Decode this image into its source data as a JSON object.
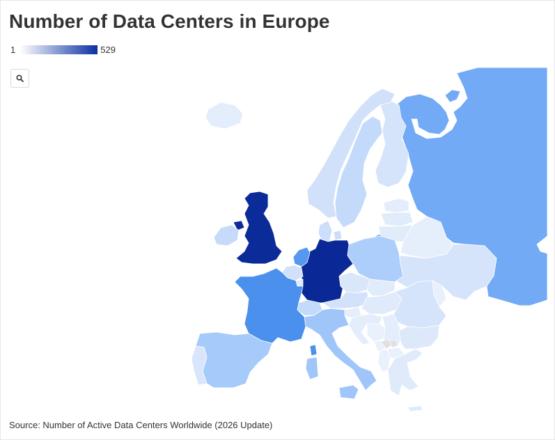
{
  "title": "Number of Data Centers in Europe",
  "legend": {
    "min": "1",
    "max": "529",
    "color_low": "#ffffff",
    "color_high": "#0a2fa3"
  },
  "controls": {
    "zoom_icon": "search-icon"
  },
  "source": "Source: Number of Active Data Centers Worldwide (2026 Update)",
  "map_data": {
    "metric": "Number of active data centers",
    "scale": {
      "min": 1,
      "max": 529
    },
    "countries": [
      {
        "name": "Russia",
        "value": 250
      },
      {
        "name": "United Kingdom",
        "value": 520
      },
      {
        "name": "Germany",
        "value": 529
      },
      {
        "name": "France",
        "value": 320
      },
      {
        "name": "Netherlands",
        "value": 300
      },
      {
        "name": "Italy",
        "value": 170
      },
      {
        "name": "Spain",
        "value": 160
      },
      {
        "name": "Poland",
        "value": 145
      },
      {
        "name": "Sweden",
        "value": 95
      },
      {
        "name": "Norway",
        "value": 65
      },
      {
        "name": "Finland",
        "value": 55
      },
      {
        "name": "Ireland",
        "value": 90
      },
      {
        "name": "Switzerland",
        "value": 95
      },
      {
        "name": "Austria",
        "value": 60
      },
      {
        "name": "Belgium",
        "value": 65
      },
      {
        "name": "Denmark",
        "value": 75
      },
      {
        "name": "Portugal",
        "value": 50
      },
      {
        "name": "Ukraine",
        "value": 55
      },
      {
        "name": "Romania",
        "value": 55
      },
      {
        "name": "Czechia",
        "value": 45
      },
      {
        "name": "Belarus",
        "value": 15
      },
      {
        "name": "Hungary",
        "value": 30
      },
      {
        "name": "Bulgaria",
        "value": 35
      },
      {
        "name": "Greece",
        "value": 30
      },
      {
        "name": "Serbia",
        "value": 20
      },
      {
        "name": "Croatia",
        "value": 20
      },
      {
        "name": "Slovakia",
        "value": 25
      },
      {
        "name": "Lithuania",
        "value": 25
      },
      {
        "name": "Latvia",
        "value": 25
      },
      {
        "name": "Estonia",
        "value": 20
      },
      {
        "name": "Slovenia",
        "value": 15
      },
      {
        "name": "Moldova",
        "value": 10
      },
      {
        "name": "Bosnia and Herzegovina",
        "value": 5
      },
      {
        "name": "North Macedonia",
        "value": 5
      },
      {
        "name": "Albania",
        "value": 5
      },
      {
        "name": "Montenegro",
        "value": 5
      },
      {
        "name": "Iceland",
        "value": 20
      },
      {
        "name": "Luxembourg",
        "value": 25
      }
    ]
  }
}
